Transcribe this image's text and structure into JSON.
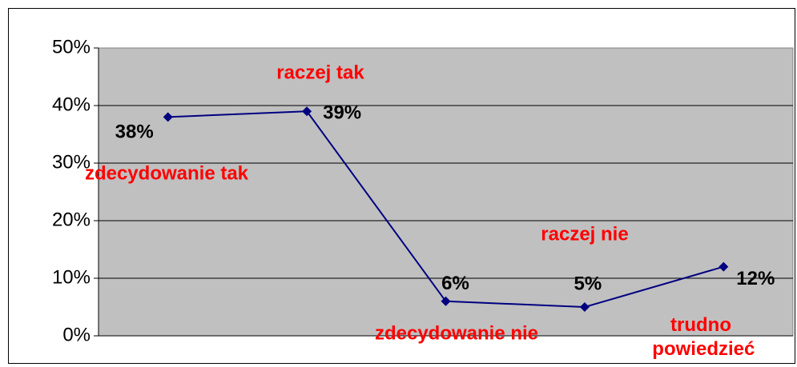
{
  "chart_data": {
    "type": "line",
    "categories": [
      "zdecydowanie tak",
      "raczej tak",
      "zdecydowanie nie",
      "raczej nie",
      "trudno powiedzieć"
    ],
    "values": [
      38,
      39,
      6,
      5,
      12
    ],
    "value_labels": [
      "38%",
      "39%",
      "6%",
      "5%",
      "12%"
    ],
    "color": "#000080",
    "ylim": [
      0,
      50
    ],
    "yticks": [
      {
        "value": 0,
        "label": "0%"
      },
      {
        "value": 10,
        "label": "10%"
      },
      {
        "value": 20,
        "label": "20%"
      },
      {
        "value": 30,
        "label": "30%"
      },
      {
        "value": 40,
        "label": "40%"
      },
      {
        "value": 50,
        "label": "50%"
      }
    ],
    "grid": true
  }
}
